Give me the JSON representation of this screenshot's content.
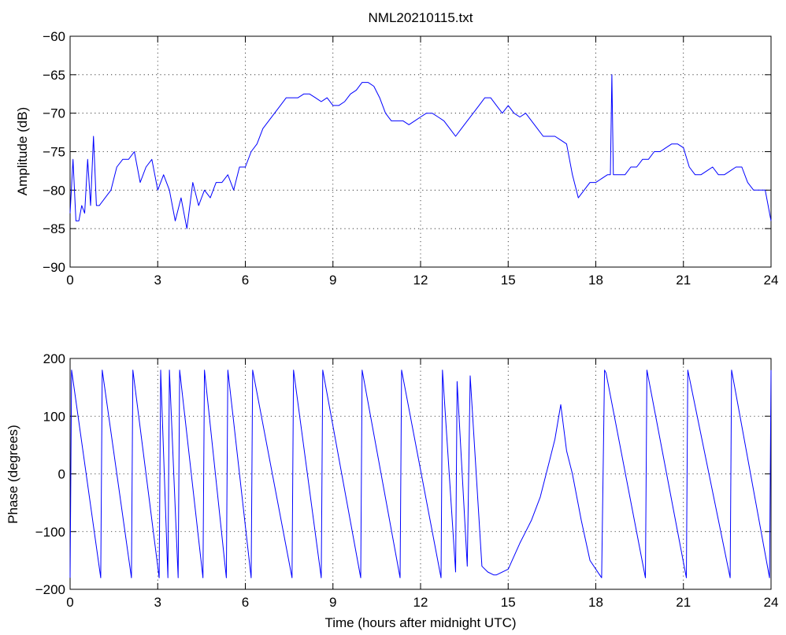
{
  "chart_data": [
    {
      "type": "line",
      "title": "NML20210115.txt",
      "xlabel": "",
      "ylabel": "Amplitude (dB)",
      "xlim": [
        0,
        24
      ],
      "ylim": [
        -90,
        -60
      ],
      "xticks": [
        0,
        3,
        6,
        9,
        12,
        15,
        18,
        21,
        24
      ],
      "yticks": [
        -60,
        -65,
        -70,
        -75,
        -80,
        -85,
        -90
      ],
      "grid": true,
      "color": "#0000ff",
      "series": [
        {
          "x": [
            0,
            0.1,
            0.2,
            0.3,
            0.4,
            0.5,
            0.6,
            0.7,
            0.8,
            0.9,
            1.0,
            1.2,
            1.4,
            1.6,
            1.8,
            2.0,
            2.2,
            2.4,
            2.6,
            2.8,
            3.0,
            3.2,
            3.4,
            3.6,
            3.8,
            4.0,
            4.2,
            4.4,
            4.6,
            4.8,
            5.0,
            5.2,
            5.4,
            5.6,
            5.8,
            6.0,
            6.2,
            6.4,
            6.6,
            6.8,
            7.0,
            7.2,
            7.4,
            7.6,
            7.8,
            8.0,
            8.2,
            8.4,
            8.6,
            8.8,
            9.0,
            9.2,
            9.4,
            9.6,
            9.8,
            10.0,
            10.2,
            10.4,
            10.6,
            10.8,
            11.0,
            11.2,
            11.4,
            11.6,
            11.8,
            12.0,
            12.2,
            12.4,
            12.6,
            12.8,
            13.0,
            13.2,
            13.4,
            13.6,
            13.8,
            14.0,
            14.2,
            14.4,
            14.6,
            14.8,
            15.0,
            15.2,
            15.4,
            15.6,
            15.8,
            16.0,
            16.2,
            16.4,
            16.6,
            16.8,
            17.0,
            17.2,
            17.4,
            17.6,
            17.8,
            18.0,
            18.2,
            18.4,
            18.5,
            18.55,
            18.6,
            18.8,
            19.0,
            19.2,
            19.4,
            19.6,
            19.8,
            20.0,
            20.2,
            20.4,
            20.6,
            20.8,
            21.0,
            21.2,
            21.4,
            21.6,
            21.8,
            22.0,
            22.2,
            22.4,
            22.6,
            22.8,
            23.0,
            23.2,
            23.4,
            23.6,
            23.8,
            24.0
          ],
          "y": [
            -83,
            -76,
            -84,
            -84,
            -82,
            -83,
            -76,
            -82,
            -73,
            -82,
            -82,
            -81,
            -80,
            -77,
            -76,
            -76,
            -75,
            -79,
            -77,
            -76,
            -80,
            -78,
            -80,
            -84,
            -81,
            -85,
            -79,
            -82,
            -80,
            -81,
            -79,
            -79,
            -78,
            -80,
            -77,
            -77,
            -75,
            -74,
            -72,
            -71,
            -70,
            -69,
            -68,
            -68,
            -68,
            -67.5,
            -67.5,
            -68,
            -68.5,
            -68,
            -69,
            -69,
            -68.5,
            -67.5,
            -67,
            -66,
            -66,
            -66.5,
            -68,
            -70,
            -71,
            -71,
            -71,
            -71.5,
            -71,
            -70.5,
            -70,
            -70,
            -70.5,
            -71,
            -72,
            -73,
            -72,
            -71,
            -70,
            -69,
            -68,
            -68,
            -69,
            -70,
            -69,
            -70,
            -70.5,
            -70,
            -71,
            -72,
            -73,
            -73,
            -73,
            -73.5,
            -74,
            -78,
            -81,
            -80,
            -79,
            -79,
            -78.5,
            -78,
            -78,
            -65,
            -78,
            -78,
            -78,
            -77,
            -77,
            -76,
            -76,
            -75,
            -75,
            -74.5,
            -74,
            -74,
            -74.5,
            -77,
            -78,
            -78,
            -77.5,
            -77,
            -78,
            -78,
            -77.5,
            -77,
            -77,
            -79,
            -80,
            -80,
            -80,
            -84
          ]
        }
      ]
    },
    {
      "type": "line",
      "title": "",
      "xlabel": "Time (hours after midnight UTC)",
      "ylabel": "Phase (degrees)",
      "xlim": [
        0,
        24
      ],
      "ylim": [
        -200,
        200
      ],
      "xticks": [
        0,
        3,
        6,
        9,
        12,
        15,
        18,
        21,
        24
      ],
      "yticks": [
        200,
        100,
        0,
        -100,
        -200
      ],
      "grid": true,
      "color": "#0000ff",
      "series": [
        {
          "x": [
            0.0,
            0.05,
            1.05,
            1.1,
            2.1,
            2.15,
            3.05,
            3.1,
            3.35,
            3.4,
            3.7,
            3.75,
            4.55,
            4.6,
            5.35,
            5.4,
            6.2,
            6.25,
            7.6,
            7.65,
            8.6,
            8.65,
            9.95,
            10.0,
            11.3,
            11.35,
            12.7,
            12.75,
            13.2,
            13.25,
            13.6,
            13.7,
            14.1,
            14.3,
            14.5,
            14.6,
            15.0,
            15.4,
            15.6,
            15.8,
            16.1,
            16.4,
            16.6,
            16.8,
            17.0,
            17.2,
            17.5,
            17.8,
            18.2,
            18.3,
            18.35,
            19.7,
            19.75,
            21.1,
            21.15,
            22.6,
            22.65,
            23.95,
            24.0
          ],
          "y": [
            -180,
            180,
            -180,
            180,
            -180,
            180,
            -180,
            180,
            -180,
            180,
            -180,
            180,
            -180,
            180,
            -180,
            180,
            -180,
            180,
            -180,
            180,
            -180,
            180,
            -180,
            180,
            -180,
            180,
            -180,
            180,
            -170,
            160,
            -160,
            170,
            -160,
            -170,
            -175,
            -175,
            -165,
            -120,
            -100,
            -80,
            -40,
            20,
            60,
            120,
            40,
            0,
            -80,
            -150,
            -180,
            180,
            175,
            -180,
            180,
            -180,
            180,
            -180,
            180,
            -180,
            180
          ]
        }
      ]
    }
  ]
}
